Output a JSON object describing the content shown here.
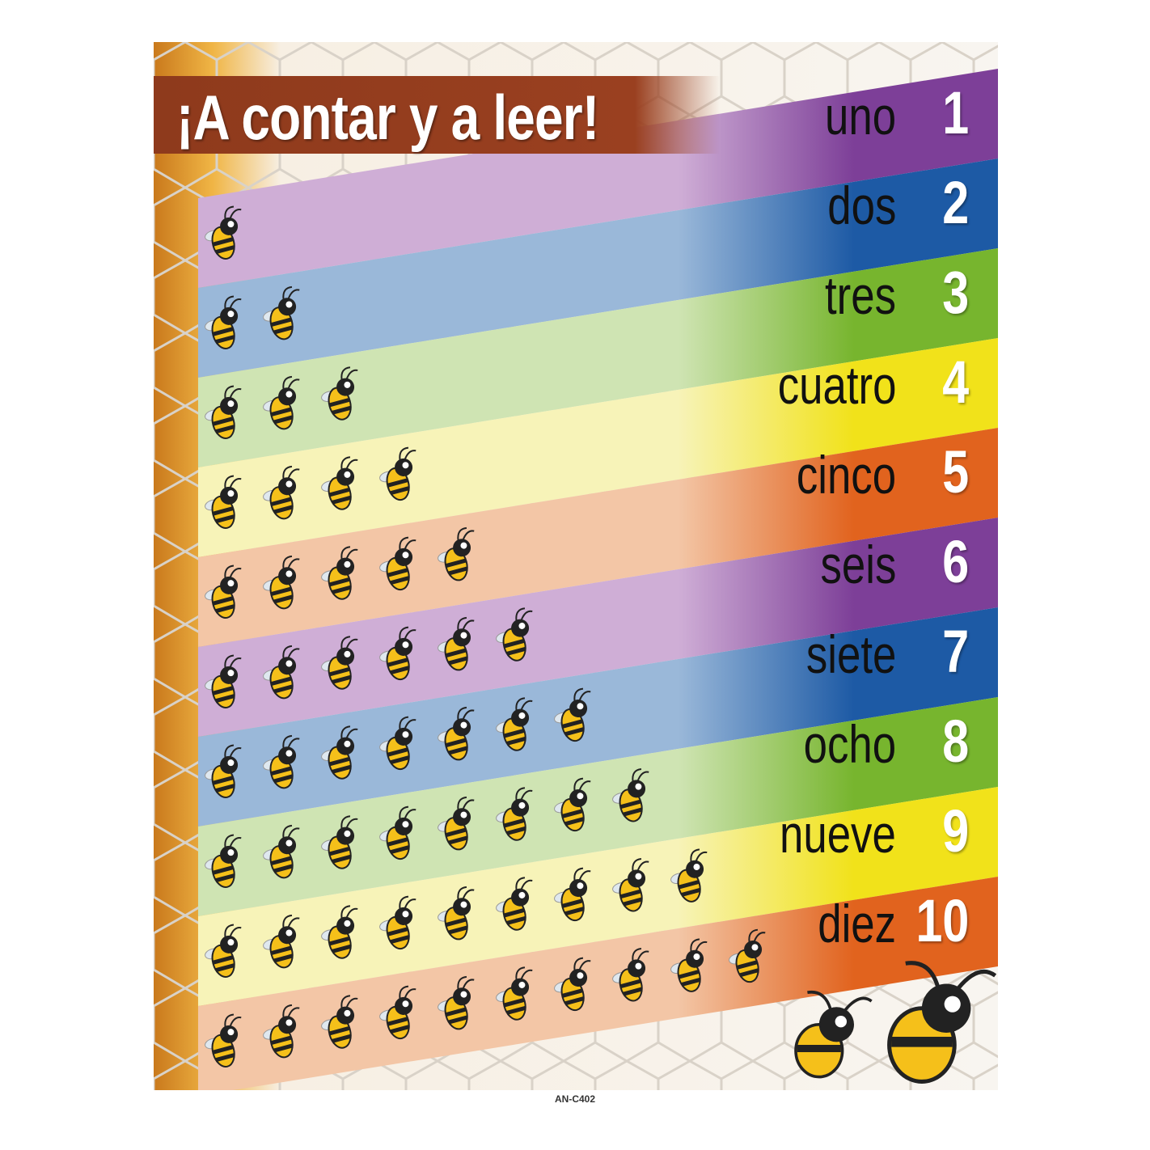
{
  "poster": {
    "title": "¡A contar y a leer!",
    "product_code": "AN-C402",
    "rows": [
      {
        "number": "1",
        "word": "uno",
        "count": 1,
        "color": "#7d3f98",
        "pale": "#cfaed6"
      },
      {
        "number": "2",
        "word": "dos",
        "count": 2,
        "color": "#1d5aa5",
        "pale": "#9ab8d9"
      },
      {
        "number": "3",
        "word": "tres",
        "count": 3,
        "color": "#77b52e",
        "pale": "#cfe4b3"
      },
      {
        "number": "4",
        "word": "cuatro",
        "count": 4,
        "color": "#f1e21a",
        "pale": "#f7f3b8"
      },
      {
        "number": "5",
        "word": "cinco",
        "count": 5,
        "color": "#e1631e",
        "pale": "#f3c6a6"
      },
      {
        "number": "6",
        "word": "seis",
        "count": 6,
        "color": "#7d3f98",
        "pale": "#cfaed6"
      },
      {
        "number": "7",
        "word": "siete",
        "count": 7,
        "color": "#1d5aa5",
        "pale": "#9ab8d9"
      },
      {
        "number": "8",
        "word": "ocho",
        "count": 8,
        "color": "#77b52e",
        "pale": "#cfe4b3"
      },
      {
        "number": "9",
        "word": "nueve",
        "count": 9,
        "color": "#f1e21a",
        "pale": "#f7f3b8"
      },
      {
        "number": "10",
        "word": "diez",
        "count": 10,
        "color": "#e1631e",
        "pale": "#f3c6a6"
      }
    ],
    "title_bar_color": "#8e3a1c",
    "icons": [
      "bee-icon",
      "honeycomb-background",
      "publisher-logo",
      "seal-logo",
      "barcode"
    ]
  }
}
